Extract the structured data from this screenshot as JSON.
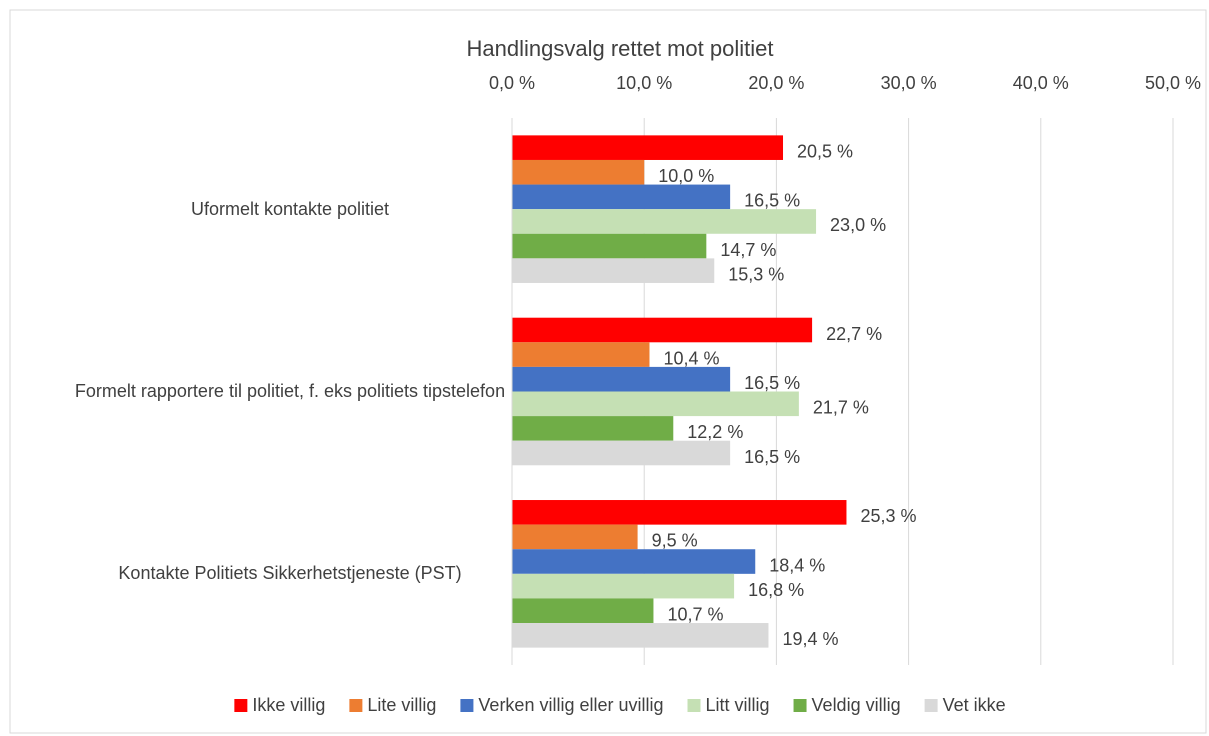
{
  "chart_data": {
    "type": "hbar",
    "title": "Handlingsvalg rettet mot politiet",
    "categories": [
      "Uformelt  kontakte politiet",
      "Formelt rapportere til politiet, f. eks politiets tipstelefon",
      "Kontakte Politiets Sikkerhetstjeneste (PST)"
    ],
    "series": [
      {
        "name": "Ikke villig",
        "color": "#ff0000",
        "values": [
          20.5,
          22.7,
          25.3
        ],
        "value_labels": [
          "20,5 %",
          "22,7 %",
          "25,3 %"
        ]
      },
      {
        "name": "Lite villig",
        "color": "#ed7d31",
        "values": [
          10.0,
          10.4,
          9.5
        ],
        "value_labels": [
          "10,0 %",
          "10,4 %",
          "9,5 %"
        ]
      },
      {
        "name": "Verken villig eller uvillig",
        "color": "#4472c4",
        "values": [
          16.5,
          16.5,
          18.4
        ],
        "value_labels": [
          "16,5 %",
          "16,5 %",
          "18,4 %"
        ]
      },
      {
        "name": "Litt villig",
        "color": "#c5e0b4",
        "values": [
          23.0,
          21.7,
          16.8
        ],
        "value_labels": [
          "23,0 %",
          "21,7 %",
          "16,8 %"
        ]
      },
      {
        "name": "Veldig villig",
        "color": "#70ad47",
        "values": [
          14.7,
          12.2,
          10.7
        ],
        "value_labels": [
          "14,7 %",
          "12,2 %",
          "10,7 %"
        ]
      },
      {
        "name": "Vet ikke",
        "color": "#d9d9d9",
        "values": [
          15.3,
          16.5,
          19.4
        ],
        "value_labels": [
          "15,3 %",
          "16,5 %",
          "19,4 %"
        ]
      }
    ],
    "xlim": [
      0,
      50
    ],
    "xticks": [
      {
        "value": 0,
        "label": "0,0 %"
      },
      {
        "value": 10,
        "label": "10,0 %"
      },
      {
        "value": 20,
        "label": "20,0 %"
      },
      {
        "value": 30,
        "label": "30,0 %"
      },
      {
        "value": 40,
        "label": "40,0 %"
      },
      {
        "value": 50,
        "label": "50,0 %"
      }
    ],
    "grid": true,
    "legend": "bottom"
  }
}
